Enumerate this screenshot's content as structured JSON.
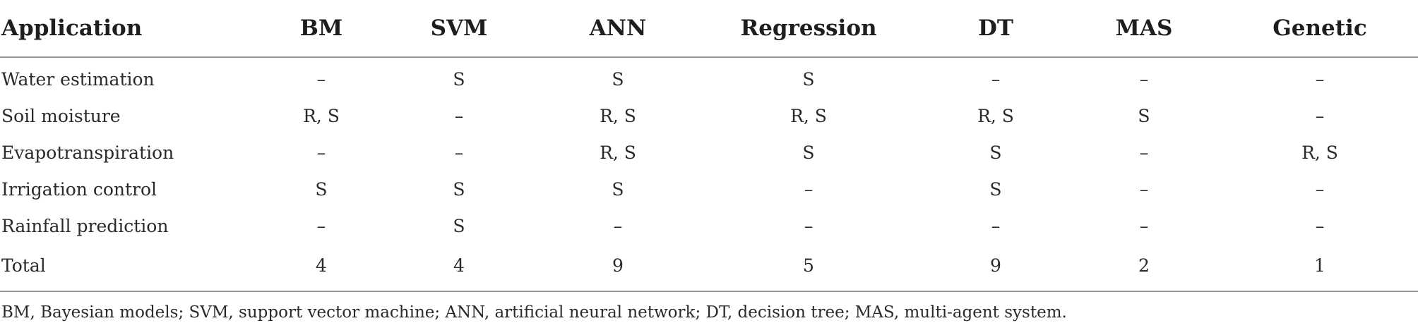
{
  "table": {
    "headers": [
      "Application",
      "BM",
      "SVM",
      "ANN",
      "Regression",
      "DT",
      "MAS",
      "Genetic"
    ],
    "rows": [
      [
        "Water estimation",
        "–",
        "S",
        "S",
        "S",
        "–",
        "–",
        "–"
      ],
      [
        "Soil moisture",
        "R, S",
        "–",
        "R, S",
        "R, S",
        "R, S",
        "S",
        "–"
      ],
      [
        "Evapotranspiration",
        "–",
        "–",
        "R, S",
        "S",
        "S",
        "–",
        "R, S"
      ],
      [
        "Irrigation control",
        "S",
        "S",
        "S",
        "–",
        "S",
        "–",
        "–"
      ],
      [
        "Rainfall prediction",
        "–",
        "S",
        "–",
        "–",
        "–",
        "–",
        "–"
      ],
      [
        "Total",
        "4",
        "4",
        "9",
        "5",
        "9",
        "2",
        "1"
      ]
    ]
  },
  "footnote": "BM, Bayesian models; SVM, support vector machine; ANN, artificial neural network; DT, decision tree; MAS, multi-agent system."
}
